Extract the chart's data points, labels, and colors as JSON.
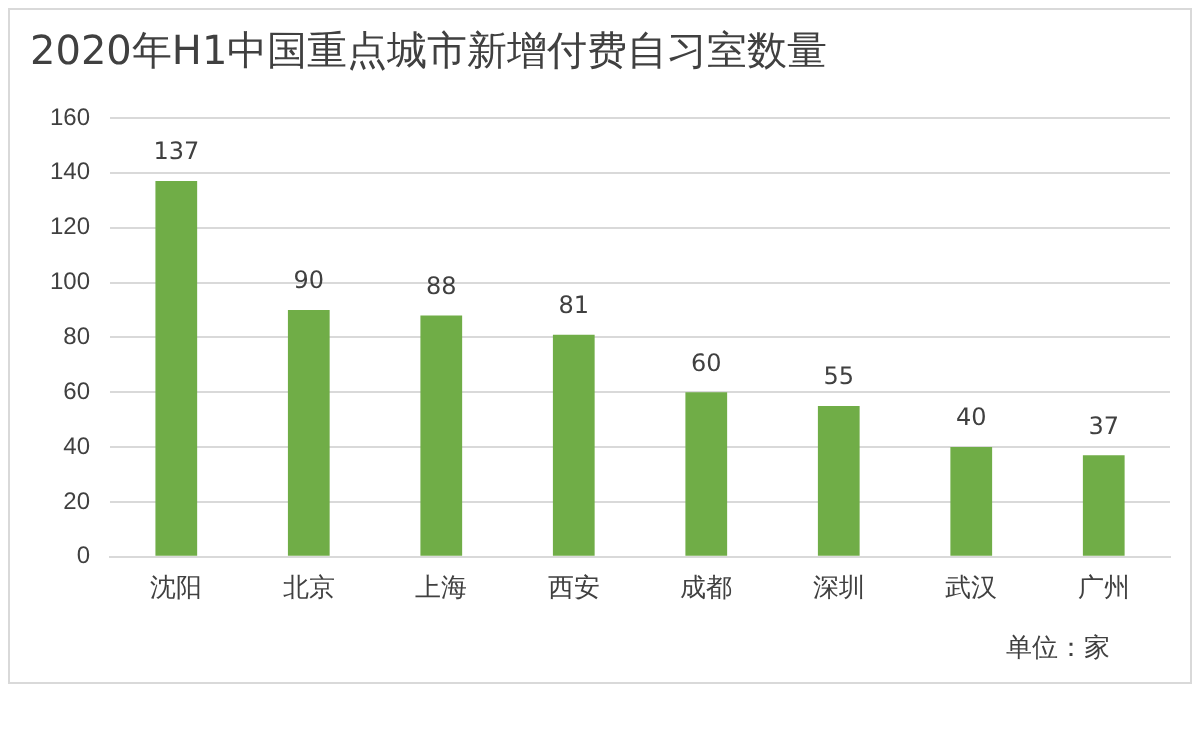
{
  "chart_data": {
    "type": "bar",
    "title": "2020年H1中国重点城市新增付费自习室数量",
    "categories": [
      "沈阳",
      "北京",
      "上海",
      "西安",
      "成都",
      "深圳",
      "武汉",
      "广州"
    ],
    "values": [
      137,
      90,
      88,
      81,
      60,
      55,
      40,
      37
    ],
    "color": "#70ad47",
    "ylim": [
      0,
      160
    ],
    "yticks": [
      0,
      20,
      40,
      60,
      80,
      100,
      120,
      140,
      160
    ],
    "grid": "y",
    "data_labels": true,
    "annotations": [
      "单位：家"
    ]
  }
}
